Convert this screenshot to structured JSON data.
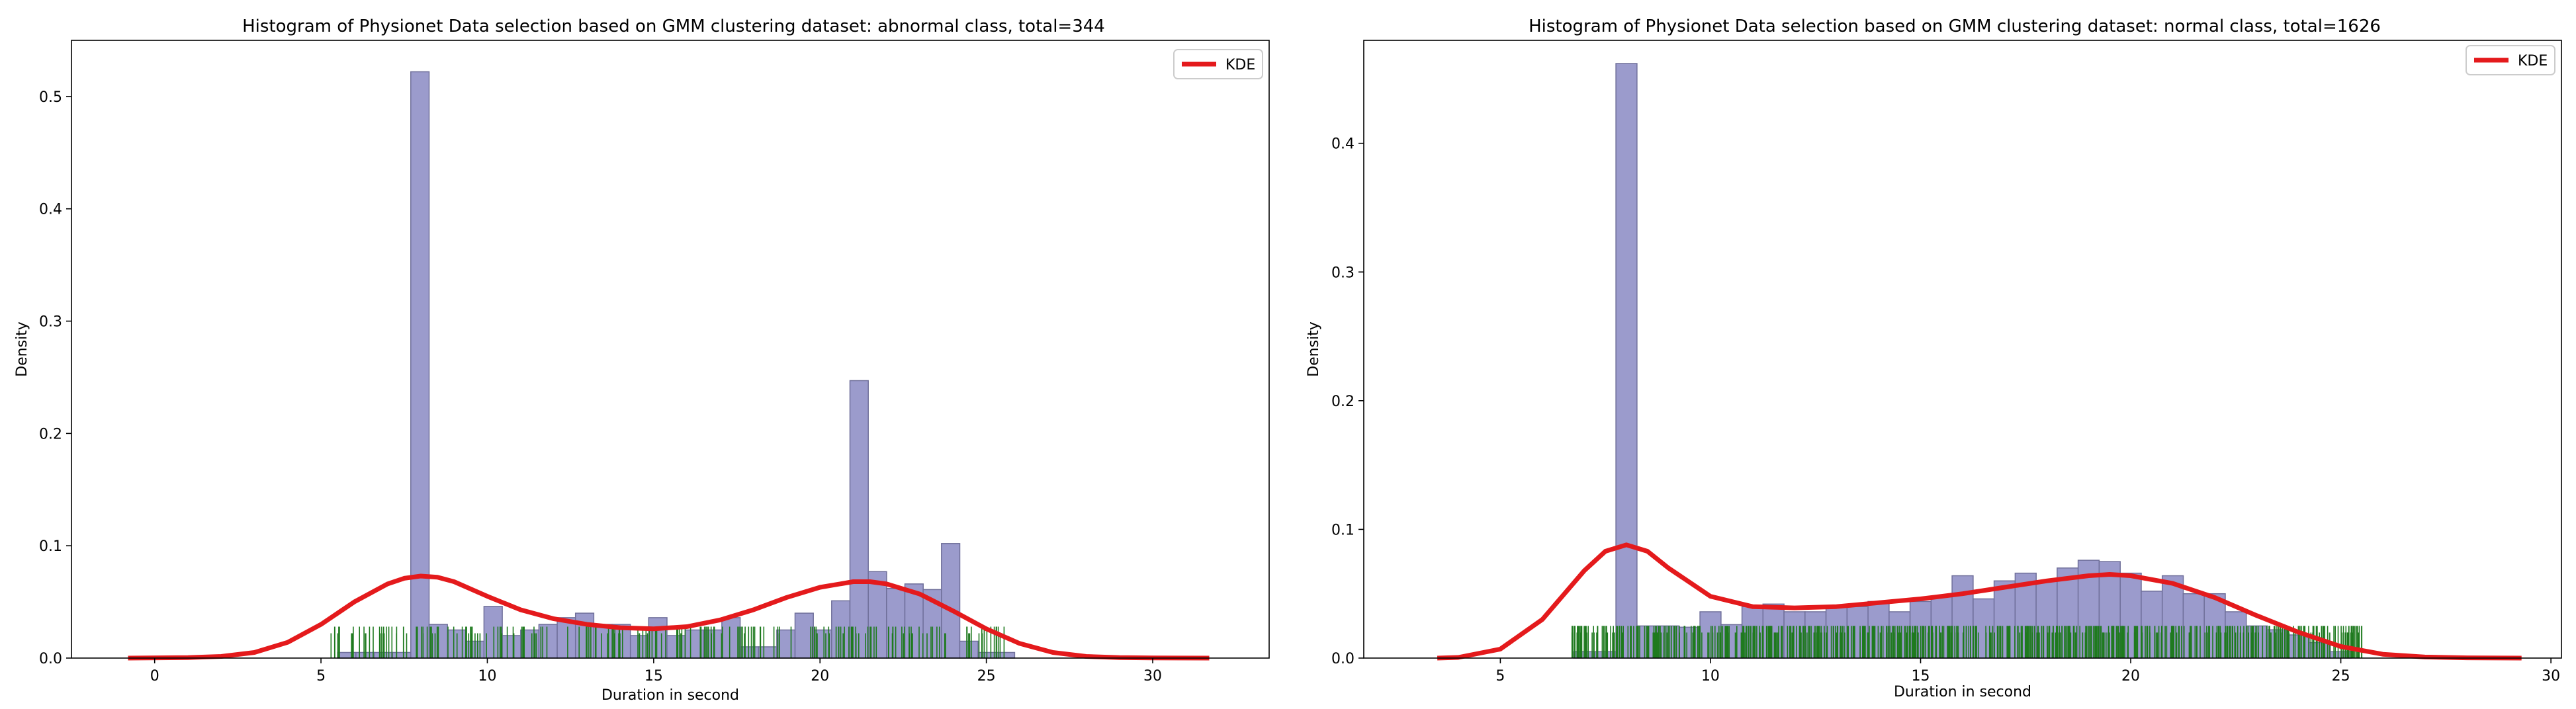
{
  "chart_data": [
    {
      "type": "histogram",
      "title": "Histogram of Physionet Data selection based on GMM clustering dataset: abnormal class, total=344",
      "xlabel": "Duration in second",
      "ylabel": "Density",
      "xlim": [
        -2.5,
        33.5
      ],
      "ylim": [
        0,
        0.55
      ],
      "xticks": [
        0,
        5,
        10,
        15,
        20,
        25,
        30
      ],
      "yticks": [
        0.0,
        0.1,
        0.2,
        0.3,
        0.4,
        0.5
      ],
      "legend": {
        "label": "KDE",
        "position": "top-right"
      },
      "colors": {
        "bars": "#9b9bcc",
        "bar_edge": "#6f6f9a",
        "kde": "#e41a1c",
        "rug": "#1f7a1f"
      },
      "bin_width": 0.55,
      "bins": [
        [
          5.5,
          0.005
        ],
        [
          6.05,
          0.005
        ],
        [
          6.6,
          0.005
        ],
        [
          7.15,
          0.005
        ],
        [
          7.7,
          0.522
        ],
        [
          8.25,
          0.03
        ],
        [
          8.8,
          0.025
        ],
        [
          9.35,
          0.015
        ],
        [
          9.9,
          0.046
        ],
        [
          10.45,
          0.02
        ],
        [
          11.0,
          0.025
        ],
        [
          11.55,
          0.03
        ],
        [
          12.1,
          0.036
        ],
        [
          12.65,
          0.04
        ],
        [
          13.2,
          0.03
        ],
        [
          13.75,
          0.03
        ],
        [
          14.3,
          0.02
        ],
        [
          14.85,
          0.036
        ],
        [
          15.4,
          0.02
        ],
        [
          15.95,
          0.025
        ],
        [
          16.5,
          0.025
        ],
        [
          17.05,
          0.036
        ],
        [
          17.6,
          0.01
        ],
        [
          18.15,
          0.01
        ],
        [
          18.7,
          0.025
        ],
        [
          19.25,
          0.04
        ],
        [
          19.8,
          0.025
        ],
        [
          20.35,
          0.051
        ],
        [
          20.9,
          0.247
        ],
        [
          21.45,
          0.077
        ],
        [
          22.0,
          0.062
        ],
        [
          22.55,
          0.066
        ],
        [
          23.1,
          0.061
        ],
        [
          23.65,
          0.102
        ],
        [
          24.2,
          0.015
        ],
        [
          24.75,
          0.005
        ],
        [
          25.3,
          0.005
        ]
      ],
      "kde": {
        "x": [
          -0.8,
          1,
          2,
          3,
          4,
          5,
          6,
          7,
          7.5,
          8,
          8.5,
          9,
          10,
          11,
          12,
          13,
          14,
          15,
          16,
          17,
          18,
          19,
          20,
          21,
          21.5,
          22,
          23,
          24,
          25,
          26,
          27,
          28,
          29,
          30,
          31.7
        ],
        "y": [
          0.0,
          0.0004,
          0.0015,
          0.005,
          0.014,
          0.03,
          0.05,
          0.066,
          0.071,
          0.073,
          0.072,
          0.068,
          0.055,
          0.043,
          0.035,
          0.03,
          0.027,
          0.026,
          0.028,
          0.034,
          0.043,
          0.054,
          0.063,
          0.068,
          0.068,
          0.066,
          0.057,
          0.042,
          0.026,
          0.013,
          0.005,
          0.0015,
          0.0004,
          0.0001,
          0.0
        ]
      },
      "rug_range": [
        5.3,
        25.6
      ],
      "rug_height": 0.028
    },
    {
      "type": "histogram",
      "title": "Histogram of Physionet Data selection based on GMM clustering dataset: normal class, total=1626",
      "xlabel": "Duration in second",
      "ylabel": "Density",
      "xlim": [
        1.75,
        30.25
      ],
      "ylim": [
        0,
        0.48
      ],
      "xticks": [
        5,
        10,
        15,
        20,
        25,
        30
      ],
      "yticks": [
        0.0,
        0.1,
        0.2,
        0.3,
        0.4
      ],
      "legend": {
        "label": "KDE",
        "position": "top-right"
      },
      "colors": {
        "bars": "#9b9bcc",
        "bar_edge": "#6f6f9a",
        "kde": "#e41a1c",
        "rug": "#1f7a1f"
      },
      "bin_width": 0.5,
      "bins": [
        [
          6.75,
          0.005
        ],
        [
          7.25,
          0.005
        ],
        [
          7.75,
          0.462
        ],
        [
          8.25,
          0.025
        ],
        [
          8.75,
          0.025
        ],
        [
          9.25,
          0.024
        ],
        [
          9.75,
          0.036
        ],
        [
          10.25,
          0.026
        ],
        [
          10.75,
          0.04
        ],
        [
          11.25,
          0.042
        ],
        [
          11.75,
          0.036
        ],
        [
          12.25,
          0.036
        ],
        [
          12.75,
          0.04
        ],
        [
          13.25,
          0.04
        ],
        [
          13.75,
          0.044
        ],
        [
          14.25,
          0.036
        ],
        [
          14.75,
          0.044
        ],
        [
          15.25,
          0.048
        ],
        [
          15.75,
          0.064
        ],
        [
          16.25,
          0.046
        ],
        [
          16.75,
          0.06
        ],
        [
          17.25,
          0.066
        ],
        [
          17.75,
          0.06
        ],
        [
          18.25,
          0.07
        ],
        [
          18.75,
          0.076
        ],
        [
          19.25,
          0.075
        ],
        [
          19.75,
          0.066
        ],
        [
          20.25,
          0.052
        ],
        [
          20.75,
          0.064
        ],
        [
          21.25,
          0.05
        ],
        [
          21.75,
          0.05
        ],
        [
          22.25,
          0.036
        ],
        [
          22.75,
          0.025
        ],
        [
          23.25,
          0.022
        ],
        [
          23.75,
          0.018
        ],
        [
          24.25,
          0.012
        ],
        [
          24.75,
          0.005
        ]
      ],
      "kde": {
        "x": [
          3.5,
          4,
          5,
          6,
          7,
          7.5,
          8,
          8.5,
          9,
          10,
          11,
          12,
          13,
          14,
          15,
          16,
          17,
          18,
          19,
          19.5,
          20,
          21,
          22,
          23,
          24,
          25,
          26,
          27,
          28,
          29.3
        ],
        "y": [
          0.0,
          0.0005,
          0.007,
          0.03,
          0.068,
          0.083,
          0.088,
          0.083,
          0.07,
          0.048,
          0.04,
          0.039,
          0.04,
          0.043,
          0.046,
          0.05,
          0.055,
          0.06,
          0.064,
          0.065,
          0.064,
          0.058,
          0.047,
          0.033,
          0.02,
          0.009,
          0.003,
          0.0008,
          0.0002,
          0.0
        ]
      },
      "rug_range": [
        6.7,
        25.5
      ],
      "rug_height": 0.025
    }
  ]
}
